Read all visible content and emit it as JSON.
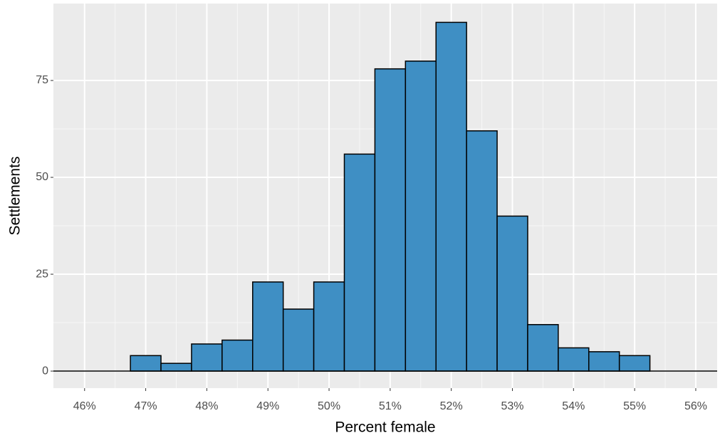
{
  "chart_data": {
    "type": "histogram",
    "x_label": "Percent female",
    "y_label": "Settlements",
    "bins": [
      46.75,
      47.25,
      47.75,
      48.25,
      48.75,
      49.25,
      49.75,
      50.25,
      50.75,
      51.25,
      51.75,
      52.25,
      52.75,
      53.25,
      53.75,
      54.25,
      54.75,
      55.25
    ],
    "values": [
      4,
      2,
      7,
      8,
      23,
      16,
      23,
      56,
      78,
      80,
      90,
      62,
      40,
      12,
      6,
      5,
      4
    ],
    "color": "#3f8fc4",
    "xlim": [
      45.49,
      56.35
    ],
    "xticks": [
      {
        "value": 46,
        "label": "46%"
      },
      {
        "value": 47,
        "label": "47%"
      },
      {
        "value": 48,
        "label": "48%"
      },
      {
        "value": 49,
        "label": "49%"
      },
      {
        "value": 50,
        "label": "50%"
      },
      {
        "value": 51,
        "label": "51%"
      },
      {
        "value": 52,
        "label": "52%"
      },
      {
        "value": 53,
        "label": "53%"
      },
      {
        "value": 54,
        "label": "54%"
      },
      {
        "value": 55,
        "label": "55%"
      },
      {
        "value": 56,
        "label": "56%"
      }
    ],
    "ylim": [
      -4.4,
      94.85
    ],
    "yticks": [
      0,
      25,
      50,
      75
    ],
    "grid": true
  }
}
